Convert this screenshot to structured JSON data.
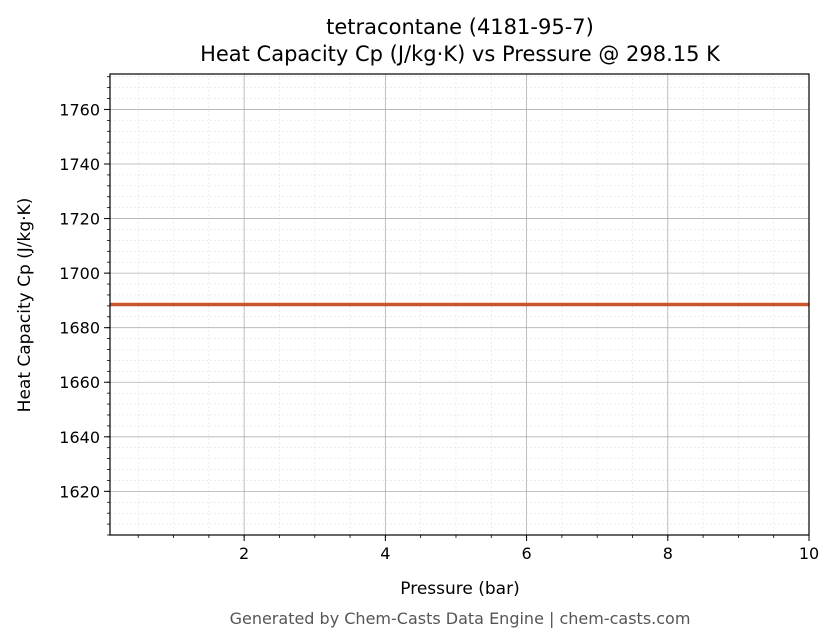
{
  "chart_data": {
    "type": "line",
    "title": "tetracontane (4181-95-7)",
    "subtitle": "Heat Capacity Cp (J/kg·K) vs Pressure @ 298.15 K",
    "xlabel": "Pressure (bar)",
    "ylabel": "Heat Capacity Cp (J/kg·K)",
    "xlim": [
      0.1,
      10
    ],
    "ylim": [
      1604,
      1773
    ],
    "xticks": [
      2,
      4,
      6,
      8,
      10
    ],
    "yticks": [
      1620,
      1640,
      1660,
      1680,
      1700,
      1720,
      1740,
      1760
    ],
    "grid": true,
    "series": [
      {
        "color": "#c8552b",
        "x": [
          0.1,
          1,
          2,
          3,
          4,
          5,
          6,
          7,
          8,
          9,
          10
        ],
        "y": [
          1688.5,
          1688.5,
          1688.5,
          1688.5,
          1688.5,
          1688.5,
          1688.5,
          1688.5,
          1688.5,
          1688.5,
          1688.5
        ]
      }
    ]
  },
  "footer": "Generated by Chem-Casts Data Engine | chem-casts.com"
}
